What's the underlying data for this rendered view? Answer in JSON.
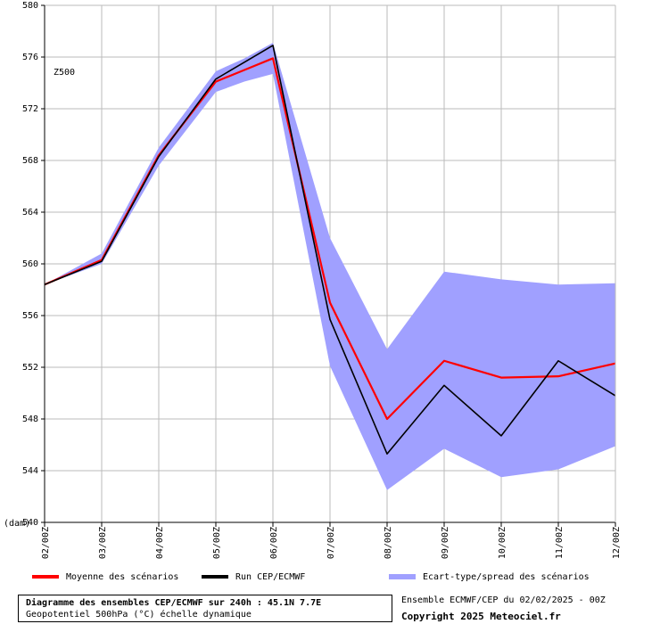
{
  "chart_data": {
    "type": "line",
    "title": "Diagramme des ensembles CEP/ECMWF sur 240h : 45.1N 7.7E",
    "subtitle": "Geopotentiel 500hPa (°C) échelle dynamique",
    "panel_label": "Z500",
    "ylabel": "(dam)",
    "ylim": [
      540,
      580
    ],
    "yticks": [
      "540",
      "544",
      "548",
      "552",
      "556",
      "560",
      "564",
      "568",
      "572",
      "576",
      "580"
    ],
    "categories": [
      "02/00Z",
      "03/00Z",
      "04/00Z",
      "05/00Z",
      "06/00Z",
      "07/00Z",
      "08/00Z",
      "09/00Z",
      "10/00Z",
      "11/00Z",
      "12/00Z"
    ],
    "x": [
      0,
      1,
      2,
      3,
      3.5,
      4,
      5,
      6,
      7,
      8,
      9,
      10
    ],
    "grid": true,
    "series": [
      {
        "name": "Moyenne des scénarios",
        "color": "#ff0000",
        "values": [
          558.4,
          560.3,
          568.4,
          574.1,
          575.0,
          575.9,
          557.0,
          548.0,
          552.5,
          551.2,
          551.3,
          552.3
        ]
      },
      {
        "name": "Run CEP/ECMWF",
        "color": "#000000",
        "values": [
          558.4,
          560.2,
          568.3,
          574.3,
          575.6,
          576.9,
          555.7,
          545.3,
          550.6,
          546.7,
          552.5,
          549.8
        ]
      },
      {
        "name": "Ecart-type/spread des scénarios",
        "color": "#a0a0ff",
        "upper": [
          558.4,
          560.8,
          569.0,
          574.9,
          575.9,
          577.1,
          562.0,
          553.4,
          559.4,
          558.8,
          558.4,
          558.5
        ],
        "lower": [
          558.4,
          560.0,
          567.6,
          573.3,
          574.1,
          574.7,
          552.1,
          542.5,
          545.7,
          543.5,
          544.1,
          545.9
        ]
      }
    ],
    "legend_position": "bottom"
  },
  "footer": {
    "ensemble_info": "Ensemble ECMWF/CEP du 02/02/2025 - 00Z",
    "copyright": "Copyright 2025 Meteociel.fr"
  }
}
